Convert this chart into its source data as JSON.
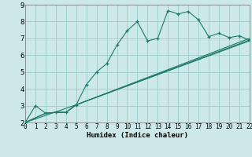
{
  "bg_color": "#cce8e8",
  "grid_color": "#99cccc",
  "line_color": "#1a7a6a",
  "xlabel": "Humidex (Indice chaleur)",
  "ylim": [
    2,
    9
  ],
  "xlim": [
    0,
    22
  ],
  "yticks": [
    2,
    3,
    4,
    5,
    6,
    7,
    8,
    9
  ],
  "xticks": [
    0,
    1,
    2,
    3,
    4,
    5,
    6,
    7,
    8,
    9,
    10,
    11,
    12,
    13,
    14,
    15,
    16,
    17,
    18,
    19,
    20,
    21,
    22
  ],
  "line1_x": [
    0,
    1,
    2,
    3,
    4,
    5,
    6,
    7,
    8,
    9,
    10,
    11,
    12,
    13,
    14,
    15,
    16,
    17,
    18,
    19,
    20,
    21,
    22
  ],
  "line1_y": [
    2.0,
    3.0,
    2.55,
    2.6,
    2.6,
    3.05,
    4.25,
    5.0,
    5.5,
    6.6,
    7.45,
    8.0,
    6.85,
    7.0,
    8.65,
    8.45,
    8.6,
    8.1,
    7.1,
    7.3,
    7.05,
    7.15,
    6.9
  ],
  "line2_x": [
    0,
    2,
    3,
    4,
    5,
    22
  ],
  "line2_y": [
    2.0,
    2.55,
    2.6,
    2.6,
    3.05,
    7.0
  ],
  "line3_x": [
    0,
    2,
    3,
    4,
    5,
    22
  ],
  "line3_y": [
    2.0,
    2.55,
    2.6,
    2.6,
    3.05,
    6.85
  ],
  "line4_x": [
    0,
    5,
    22
  ],
  "line4_y": [
    2.0,
    3.05,
    6.9
  ]
}
